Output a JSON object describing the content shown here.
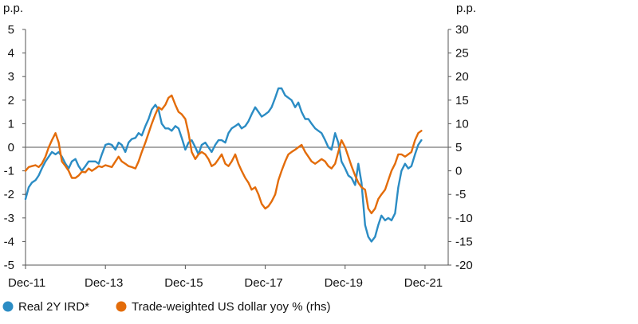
{
  "chart_data": {
    "type": "line",
    "left_axis_unit": "p.p.",
    "right_axis_unit": "p.p.",
    "x_tick_labels": [
      "Dec-11",
      "Dec-13",
      "Dec-15",
      "Dec-17",
      "Dec-19",
      "Dec-21"
    ],
    "x_tick_positions": [
      2011.92,
      2013.92,
      2015.92,
      2017.92,
      2019.92,
      2021.92
    ],
    "xlim": [
      2011.92,
      2022.5
    ],
    "ylim_left": [
      -5,
      5
    ],
    "ylim_right": [
      -20,
      30
    ],
    "left_ticks": [
      "5",
      "4",
      "3",
      "2",
      "1",
      "0",
      "-1",
      "-2",
      "-3",
      "-4",
      "-5"
    ],
    "right_ticks": [
      "30",
      "25",
      "20",
      "15",
      "10",
      "5",
      "0",
      "-5",
      "-10",
      "-15",
      "-20"
    ],
    "zero_line": 0,
    "grid": false,
    "legend_position": "bottom-left",
    "series": [
      {
        "name": "Real 2Y IRD*",
        "axis": "left",
        "color": "#2b8cc4",
        "points": [
          [
            2011.92,
            -2.2
          ],
          [
            2012.0,
            -1.7
          ],
          [
            2012.08,
            -1.5
          ],
          [
            2012.17,
            -1.4
          ],
          [
            2012.25,
            -1.2
          ],
          [
            2012.33,
            -0.9
          ],
          [
            2012.42,
            -0.6
          ],
          [
            2012.5,
            -0.4
          ],
          [
            2012.58,
            -0.2
          ],
          [
            2012.67,
            -0.3
          ],
          [
            2012.75,
            -0.2
          ],
          [
            2012.83,
            -0.4
          ],
          [
            2012.92,
            -0.7
          ],
          [
            2013.0,
            -0.9
          ],
          [
            2013.08,
            -0.6
          ],
          [
            2013.17,
            -0.5
          ],
          [
            2013.25,
            -0.8
          ],
          [
            2013.33,
            -1.0
          ],
          [
            2013.42,
            -0.8
          ],
          [
            2013.5,
            -0.6
          ],
          [
            2013.58,
            -0.6
          ],
          [
            2013.67,
            -0.6
          ],
          [
            2013.75,
            -0.7
          ],
          [
            2013.83,
            -0.3
          ],
          [
            2013.92,
            0.1
          ],
          [
            2014.0,
            0.15
          ],
          [
            2014.08,
            0.1
          ],
          [
            2014.17,
            -0.1
          ],
          [
            2014.25,
            0.2
          ],
          [
            2014.33,
            0.1
          ],
          [
            2014.42,
            -0.2
          ],
          [
            2014.5,
            0.2
          ],
          [
            2014.58,
            0.35
          ],
          [
            2014.67,
            0.4
          ],
          [
            2014.75,
            0.6
          ],
          [
            2014.83,
            0.5
          ],
          [
            2014.92,
            0.9
          ],
          [
            2015.0,
            1.2
          ],
          [
            2015.08,
            1.6
          ],
          [
            2015.17,
            1.8
          ],
          [
            2015.25,
            1.6
          ],
          [
            2015.33,
            1.0
          ],
          [
            2015.42,
            0.8
          ],
          [
            2015.5,
            0.8
          ],
          [
            2015.58,
            0.7
          ],
          [
            2015.67,
            0.9
          ],
          [
            2015.75,
            0.8
          ],
          [
            2015.83,
            0.4
          ],
          [
            2015.92,
            -0.1
          ],
          [
            2016.0,
            0.2
          ],
          [
            2016.08,
            0.3
          ],
          [
            2016.17,
            0.0
          ],
          [
            2016.25,
            -0.3
          ],
          [
            2016.33,
            0.1
          ],
          [
            2016.42,
            0.2
          ],
          [
            2016.5,
            0.0
          ],
          [
            2016.58,
            -0.2
          ],
          [
            2016.67,
            0.1
          ],
          [
            2016.75,
            0.3
          ],
          [
            2016.83,
            0.3
          ],
          [
            2016.92,
            0.2
          ],
          [
            2017.0,
            0.6
          ],
          [
            2017.08,
            0.8
          ],
          [
            2017.17,
            0.9
          ],
          [
            2017.25,
            1.0
          ],
          [
            2017.33,
            0.8
          ],
          [
            2017.42,
            0.9
          ],
          [
            2017.5,
            1.1
          ],
          [
            2017.58,
            1.4
          ],
          [
            2017.67,
            1.7
          ],
          [
            2017.75,
            1.5
          ],
          [
            2017.83,
            1.3
          ],
          [
            2017.92,
            1.4
          ],
          [
            2018.0,
            1.5
          ],
          [
            2018.08,
            1.7
          ],
          [
            2018.17,
            2.1
          ],
          [
            2018.25,
            2.5
          ],
          [
            2018.33,
            2.5
          ],
          [
            2018.42,
            2.2
          ],
          [
            2018.5,
            2.1
          ],
          [
            2018.58,
            2.0
          ],
          [
            2018.67,
            1.7
          ],
          [
            2018.75,
            1.9
          ],
          [
            2018.83,
            1.5
          ],
          [
            2018.92,
            1.2
          ],
          [
            2019.0,
            1.2
          ],
          [
            2019.08,
            1.0
          ],
          [
            2019.17,
            0.8
          ],
          [
            2019.25,
            0.7
          ],
          [
            2019.33,
            0.6
          ],
          [
            2019.42,
            0.3
          ],
          [
            2019.5,
            0.0
          ],
          [
            2019.58,
            -0.1
          ],
          [
            2019.67,
            0.6
          ],
          [
            2019.75,
            0.2
          ],
          [
            2019.83,
            -0.6
          ],
          [
            2019.92,
            -0.9
          ],
          [
            2020.0,
            -1.2
          ],
          [
            2020.08,
            -1.3
          ],
          [
            2020.17,
            -1.6
          ],
          [
            2020.25,
            -0.7
          ],
          [
            2020.33,
            -1.5
          ],
          [
            2020.42,
            -3.3
          ],
          [
            2020.5,
            -3.8
          ],
          [
            2020.58,
            -4.0
          ],
          [
            2020.67,
            -3.8
          ],
          [
            2020.75,
            -3.3
          ],
          [
            2020.83,
            -2.9
          ],
          [
            2020.92,
            -3.1
          ],
          [
            2021.0,
            -3.0
          ],
          [
            2021.08,
            -3.1
          ],
          [
            2021.17,
            -2.8
          ],
          [
            2021.25,
            -1.7
          ],
          [
            2021.33,
            -1.0
          ],
          [
            2021.42,
            -0.7
          ],
          [
            2021.5,
            -0.9
          ],
          [
            2021.58,
            -0.8
          ],
          [
            2021.67,
            -0.3
          ],
          [
            2021.75,
            0.1
          ],
          [
            2021.83,
            0.3
          ]
        ]
      },
      {
        "name": "Trade-weighted US dollar yoy % (rhs)",
        "axis": "right",
        "color": "#e36c0a",
        "points": [
          [
            2011.92,
            0
          ],
          [
            2012.0,
            0.8
          ],
          [
            2012.08,
            1.0
          ],
          [
            2012.17,
            1.2
          ],
          [
            2012.25,
            0.8
          ],
          [
            2012.33,
            1.5
          ],
          [
            2012.42,
            3.0
          ],
          [
            2012.5,
            5.0
          ],
          [
            2012.58,
            6.5
          ],
          [
            2012.67,
            8.0
          ],
          [
            2012.75,
            6.0
          ],
          [
            2012.83,
            2.0
          ],
          [
            2012.92,
            1.0
          ],
          [
            2013.0,
            0.0
          ],
          [
            2013.08,
            -1.5
          ],
          [
            2013.17,
            -1.5
          ],
          [
            2013.25,
            -1.0
          ],
          [
            2013.33,
            -0.2
          ],
          [
            2013.42,
            -0.3
          ],
          [
            2013.5,
            0.5
          ],
          [
            2013.58,
            0.0
          ],
          [
            2013.67,
            0.5
          ],
          [
            2013.75,
            1.0
          ],
          [
            2013.83,
            0.8
          ],
          [
            2013.92,
            1.2
          ],
          [
            2014.0,
            1.0
          ],
          [
            2014.08,
            0.8
          ],
          [
            2014.17,
            2.0
          ],
          [
            2014.25,
            3.0
          ],
          [
            2014.33,
            2.0
          ],
          [
            2014.42,
            1.5
          ],
          [
            2014.5,
            1.0
          ],
          [
            2014.58,
            0.8
          ],
          [
            2014.67,
            0.5
          ],
          [
            2014.75,
            2.0
          ],
          [
            2014.83,
            4.0
          ],
          [
            2014.92,
            6.0
          ],
          [
            2015.0,
            8.0
          ],
          [
            2015.08,
            10.0
          ],
          [
            2015.17,
            12.0
          ],
          [
            2015.25,
            13.5
          ],
          [
            2015.33,
            13.0
          ],
          [
            2015.42,
            14.0
          ],
          [
            2015.5,
            15.5
          ],
          [
            2015.58,
            16.0
          ],
          [
            2015.67,
            14.0
          ],
          [
            2015.75,
            12.5
          ],
          [
            2015.83,
            12.0
          ],
          [
            2015.92,
            11.0
          ],
          [
            2016.0,
            8.0
          ],
          [
            2016.08,
            4.0
          ],
          [
            2016.17,
            2.5
          ],
          [
            2016.25,
            3.5
          ],
          [
            2016.33,
            4.0
          ],
          [
            2016.42,
            3.5
          ],
          [
            2016.5,
            2.5
          ],
          [
            2016.58,
            1.0
          ],
          [
            2016.67,
            1.5
          ],
          [
            2016.75,
            2.5
          ],
          [
            2016.83,
            3.5
          ],
          [
            2016.92,
            1.5
          ],
          [
            2017.0,
            1.0
          ],
          [
            2017.08,
            2.0
          ],
          [
            2017.17,
            3.5
          ],
          [
            2017.25,
            1.5
          ],
          [
            2017.33,
            0.0
          ],
          [
            2017.42,
            -1.5
          ],
          [
            2017.5,
            -2.5
          ],
          [
            2017.58,
            -4.0
          ],
          [
            2017.67,
            -3.5
          ],
          [
            2017.75,
            -5.0
          ],
          [
            2017.83,
            -7.0
          ],
          [
            2017.92,
            -8.0
          ],
          [
            2018.0,
            -7.5
          ],
          [
            2018.08,
            -6.5
          ],
          [
            2018.17,
            -5.0
          ],
          [
            2018.25,
            -2.0
          ],
          [
            2018.33,
            0.0
          ],
          [
            2018.42,
            2.0
          ],
          [
            2018.5,
            3.5
          ],
          [
            2018.58,
            4.0
          ],
          [
            2018.67,
            4.5
          ],
          [
            2018.75,
            5.0
          ],
          [
            2018.83,
            5.5
          ],
          [
            2018.92,
            4.0
          ],
          [
            2019.0,
            3.0
          ],
          [
            2019.08,
            2.0
          ],
          [
            2019.17,
            1.5
          ],
          [
            2019.25,
            2.0
          ],
          [
            2019.33,
            2.5
          ],
          [
            2019.42,
            2.0
          ],
          [
            2019.5,
            1.0
          ],
          [
            2019.58,
            0.5
          ],
          [
            2019.67,
            1.5
          ],
          [
            2019.75,
            4.0
          ],
          [
            2019.83,
            6.5
          ],
          [
            2019.92,
            5.0
          ],
          [
            2020.0,
            3.0
          ],
          [
            2020.08,
            1.0
          ],
          [
            2020.17,
            -1.0
          ],
          [
            2020.25,
            -2.5
          ],
          [
            2020.33,
            -3.5
          ],
          [
            2020.42,
            -4.0
          ],
          [
            2020.5,
            -8.0
          ],
          [
            2020.58,
            -9.0
          ],
          [
            2020.67,
            -8.0
          ],
          [
            2020.75,
            -6.0
          ],
          [
            2020.83,
            -5.0
          ],
          [
            2020.92,
            -4.0
          ],
          [
            2021.0,
            -2.0
          ],
          [
            2021.08,
            0.0
          ],
          [
            2021.17,
            1.5
          ],
          [
            2021.25,
            3.5
          ],
          [
            2021.33,
            3.5
          ],
          [
            2021.42,
            3.0
          ],
          [
            2021.5,
            3.5
          ],
          [
            2021.58,
            4.0
          ],
          [
            2021.67,
            6.5
          ],
          [
            2021.75,
            8.0
          ],
          [
            2021.83,
            8.5
          ]
        ]
      }
    ]
  }
}
